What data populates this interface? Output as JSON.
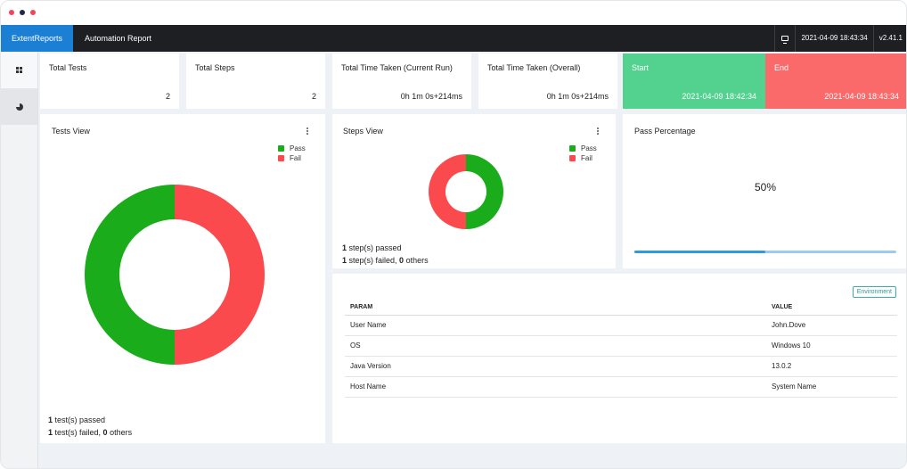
{
  "window": {
    "controls": [
      "close",
      "minimize",
      "maximize"
    ]
  },
  "navbar": {
    "brand": "ExtentReports",
    "title": "Automation Report",
    "monitor_icon": "monitor-icon",
    "timestamp": "2021-04-09 18:43:34",
    "version": "v2.41.1"
  },
  "sidebar": {
    "items": [
      {
        "icon": "dashboard-grid-icon"
      },
      {
        "icon": "pie-chart-icon"
      }
    ]
  },
  "stats": {
    "total_tests": {
      "label": "Total Tests",
      "value": "2"
    },
    "total_steps": {
      "label": "Total Steps",
      "value": "2"
    },
    "time_current": {
      "label": "Total Time Taken (Current Run)",
      "value": "0h 1m 0s+214ms"
    },
    "time_overall": {
      "label": "Total Time Taken (Overall)",
      "value": "0h 1m 0s+214ms"
    },
    "start": {
      "label": "Start",
      "value": "2021-04-09 18:42:34"
    },
    "end": {
      "label": "End",
      "value": "2021-04-09 18:43:34"
    }
  },
  "colors": {
    "pass": "#1aac1a",
    "fail": "#fb4a4d",
    "start_bg": "#52d18f",
    "end_bg": "#fb6a6a",
    "brand": "#1b7fd4"
  },
  "tests_view": {
    "title": "Tests View",
    "legend": [
      "Pass",
      "Fail"
    ],
    "summary_passed_count": "1",
    "summary_passed_text": " test(s) passed",
    "summary_failed_count": "1",
    "summary_failed_text": " test(s) failed, ",
    "summary_others_count": "0",
    "summary_others_text": " others"
  },
  "steps_view": {
    "title": "Steps View",
    "legend": [
      "Pass",
      "Fail"
    ],
    "summary_passed_count": "1",
    "summary_passed_text": " step(s) passed",
    "summary_failed_count": "1",
    "summary_failed_text": " step(s) failed, ",
    "summary_others_count": "0",
    "summary_others_text": " others"
  },
  "pass_percentage": {
    "title": "Pass Percentage",
    "value_text": "50%",
    "value": 0.5
  },
  "environment": {
    "badge": "Environment",
    "headers": [
      "PARAM",
      "VALUE"
    ],
    "rows": [
      [
        "User Name",
        "John.Dove"
      ],
      [
        "OS",
        "Windows 10"
      ],
      [
        "Java Version",
        "13.0.2"
      ],
      [
        "Host Name",
        "System Name"
      ]
    ]
  },
  "chart_data": [
    {
      "type": "pie",
      "title": "Tests View",
      "categories": [
        "Pass",
        "Fail"
      ],
      "values": [
        1,
        1
      ]
    },
    {
      "type": "pie",
      "title": "Steps View",
      "categories": [
        "Pass",
        "Fail"
      ],
      "values": [
        1,
        1
      ]
    }
  ]
}
